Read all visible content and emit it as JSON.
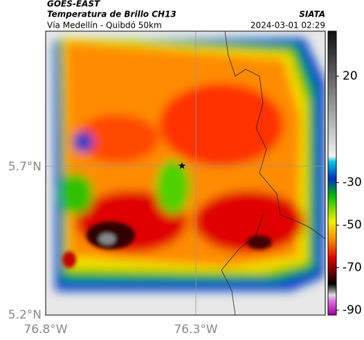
{
  "header": {
    "source": "GOES-EAST",
    "title": "Temperatura de Brillo CH13",
    "agency": "SIATA",
    "subtitle": "Vía Medellín - Quibdó 50km",
    "timestamp": "2024-03-01 02:29"
  },
  "map": {
    "lat_labels": [
      "5.7°N",
      "5.2°N"
    ],
    "lon_labels": [
      "76.8°W",
      "76.3°W"
    ]
  },
  "colorbar": {
    "ticks": [
      20,
      -30,
      -50,
      -70,
      -90
    ]
  }
}
